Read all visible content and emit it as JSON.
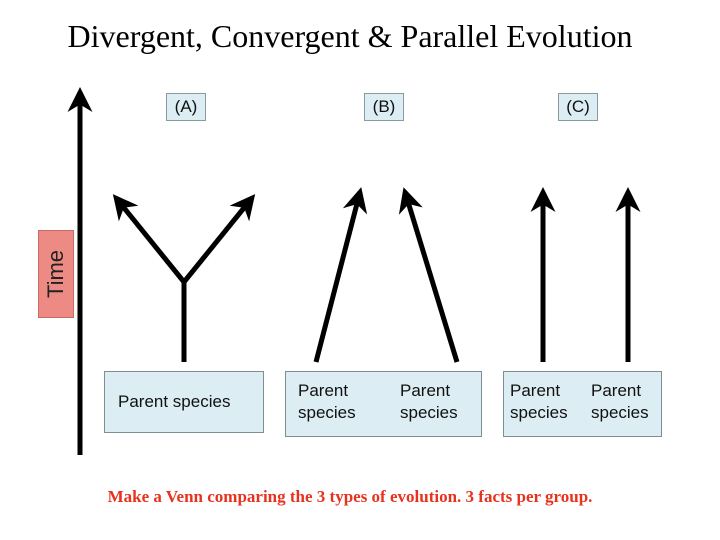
{
  "title": "Divergent, Convergent & Parallel Evolution",
  "time_label": "Time",
  "panels": [
    {
      "label": "(A)",
      "parents": [
        "Parent species"
      ]
    },
    {
      "label": "(B)",
      "parents": [
        "Parent\nspecies",
        "Parent\nspecies"
      ]
    },
    {
      "label": "(C)",
      "parents": [
        "Parent\nspecies",
        "Parent\nspecies"
      ]
    }
  ],
  "footer": "Make a Venn comparing the 3 types of evolution. 3 facts per group.",
  "colors": {
    "box_fill": "#dcedf3",
    "time_fill": "#ee8a84",
    "footer_text": "#e8321e"
  }
}
